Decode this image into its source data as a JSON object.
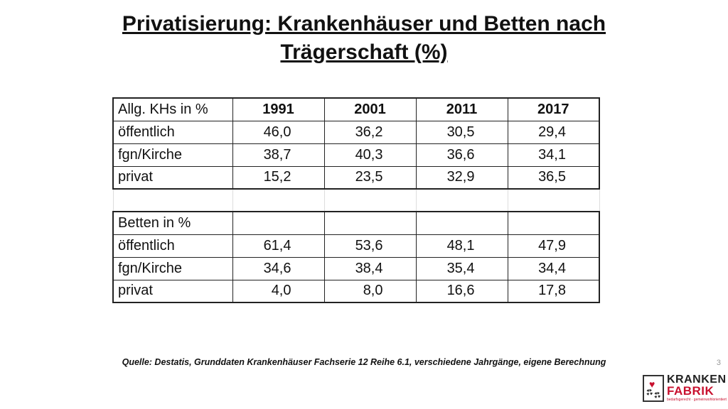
{
  "title": {
    "line1": "Privatisierung: Krankenhäuser und Betten nach",
    "line2": "Trägerschaft (%)"
  },
  "table": {
    "header": [
      "Allg. KHs in %",
      "1991",
      "2001",
      "2011",
      "2017"
    ],
    "khs_rows": [
      {
        "label": "öffentlich",
        "values": [
          "46,0",
          "36,2",
          "30,5",
          "29,4"
        ]
      },
      {
        "label": "fgn/Kirche",
        "values": [
          "38,7",
          "40,3",
          "36,6",
          "34,1"
        ]
      },
      {
        "label": "privat",
        "values": [
          "15,2",
          "23,5",
          "32,9",
          "36,5"
        ]
      }
    ],
    "betten_label": "Betten in %",
    "betten_rows": [
      {
        "label": "öffentlich",
        "values": [
          "61,4",
          "53,6",
          "48,1",
          "47,9"
        ]
      },
      {
        "label": "fgn/Kirche",
        "values": [
          "34,6",
          "38,4",
          "35,4",
          "34,4"
        ]
      },
      {
        "label": "privat",
        "values": [
          "4,0",
          "8,0",
          "16,6",
          "17,8"
        ]
      }
    ]
  },
  "source": "Quelle: Destatis, Grunddaten Krankenhäuser Fachserie 12 Reihe 6.1, verschiedene Jahrgänge, eigene Berechnung",
  "slide_number": "3",
  "logo": {
    "word1": "KRANKEN",
    "word2": "FABRIK",
    "tagline": "bedarfsgerecht · gemeinwohlorientiert",
    "icon": "heart-gears-icon",
    "accent_color": "#c8102e"
  }
}
